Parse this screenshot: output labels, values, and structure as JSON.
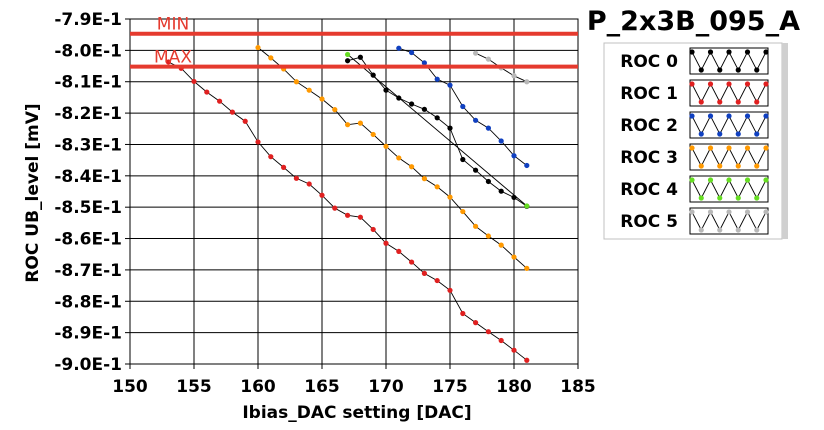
{
  "chart_data": {
    "type": "line",
    "title": "P_2x3B_095_A",
    "xlabel": "Ibias_DAC setting [DAC]",
    "ylabel": "ROC UB_level [mV]",
    "xlim": [
      150,
      185
    ],
    "ylim": [
      -0.9,
      -0.79
    ],
    "x_ticks": [
      150,
      155,
      160,
      165,
      170,
      175,
      180,
      185
    ],
    "x_tick_labels": [
      "150",
      "155",
      "160",
      "165",
      "170",
      "175",
      "180",
      "185"
    ],
    "y_ticks": [
      -0.79,
      -0.8,
      -0.81,
      -0.82,
      -0.83,
      -0.84,
      -0.85,
      -0.86,
      -0.87,
      -0.88,
      -0.89,
      -0.9
    ],
    "y_tick_labels": [
      "-7.9E-1",
      "-8.0E-1",
      "-8.1E-1",
      "-8.2E-1",
      "-8.3E-1",
      "-8.4E-1",
      "-8.5E-1",
      "-8.6E-1",
      "-8.7E-1",
      "-8.8E-1",
      "-8.9E-1",
      "-9.0E-1"
    ],
    "grid": true,
    "limit_lines": [
      {
        "label": "MIN",
        "value": -0.7947,
        "color": "#e53a2e"
      },
      {
        "label": "MAX",
        "value": -0.8052,
        "color": "#e53a2e"
      }
    ],
    "legend_position": "right",
    "series": [
      {
        "name": "ROC 0",
        "color": "#000000",
        "x": [
          167,
          168,
          169,
          170,
          171,
          172,
          173,
          174,
          175,
          176,
          177,
          178,
          179,
          180,
          181
        ],
        "y": [
          -0.8033,
          -0.8022,
          -0.8079,
          -0.8127,
          -0.8152,
          -0.8171,
          -0.8188,
          -0.8215,
          -0.8248,
          -0.8348,
          -0.8382,
          -0.8418,
          -0.8449,
          -0.8469,
          -0.8497
        ]
      },
      {
        "name": "ROC 1",
        "color": "#e02020",
        "x": [
          153,
          154,
          155,
          156,
          157,
          158,
          159,
          160,
          161,
          162,
          163,
          164,
          165,
          166,
          167,
          168,
          169,
          170,
          171,
          172,
          173,
          174,
          175,
          176,
          177,
          178,
          179,
          180,
          181
        ],
        "y": [
          -0.8037,
          -0.8057,
          -0.8099,
          -0.8133,
          -0.8162,
          -0.8197,
          -0.8226,
          -0.8292,
          -0.8339,
          -0.8373,
          -0.8408,
          -0.8426,
          -0.8462,
          -0.8503,
          -0.8526,
          -0.8532,
          -0.8571,
          -0.8615,
          -0.8641,
          -0.8675,
          -0.8711,
          -0.8734,
          -0.8765,
          -0.8839,
          -0.8868,
          -0.8897,
          -0.8925,
          -0.8956,
          -0.8988
        ]
      },
      {
        "name": "ROC 2",
        "color": "#1040c0",
        "x": [
          171,
          172,
          173,
          174,
          175,
          176,
          177,
          178,
          179,
          180,
          181
        ],
        "y": [
          -0.7993,
          -0.8007,
          -0.804,
          -0.8092,
          -0.8111,
          -0.8179,
          -0.8223,
          -0.8248,
          -0.8289,
          -0.8336,
          -0.8367
        ]
      },
      {
        "name": "ROC 3",
        "color": "#ff9900",
        "x": [
          160,
          161,
          162,
          163,
          164,
          165,
          166,
          167,
          168,
          169,
          170,
          171,
          172,
          173,
          174,
          175,
          176,
          177,
          178,
          179,
          180,
          181
        ],
        "y": [
          -0.7991,
          -0.8024,
          -0.8059,
          -0.81,
          -0.8127,
          -0.8155,
          -0.8189,
          -0.8237,
          -0.8232,
          -0.8268,
          -0.8306,
          -0.8343,
          -0.8371,
          -0.8409,
          -0.8435,
          -0.8468,
          -0.8514,
          -0.8561,
          -0.8592,
          -0.8621,
          -0.8659,
          -0.8695
        ]
      },
      {
        "name": "ROC 4",
        "color": "#66dd22",
        "x": [
          167,
          181
        ],
        "y": [
          -0.8013,
          -0.8496
        ]
      },
      {
        "name": "ROC 5",
        "color": "#b8b8b8",
        "x": [
          177,
          178,
          179,
          180,
          181
        ],
        "y": [
          -0.8009,
          -0.8028,
          -0.8056,
          -0.8081,
          -0.81
        ]
      }
    ]
  }
}
